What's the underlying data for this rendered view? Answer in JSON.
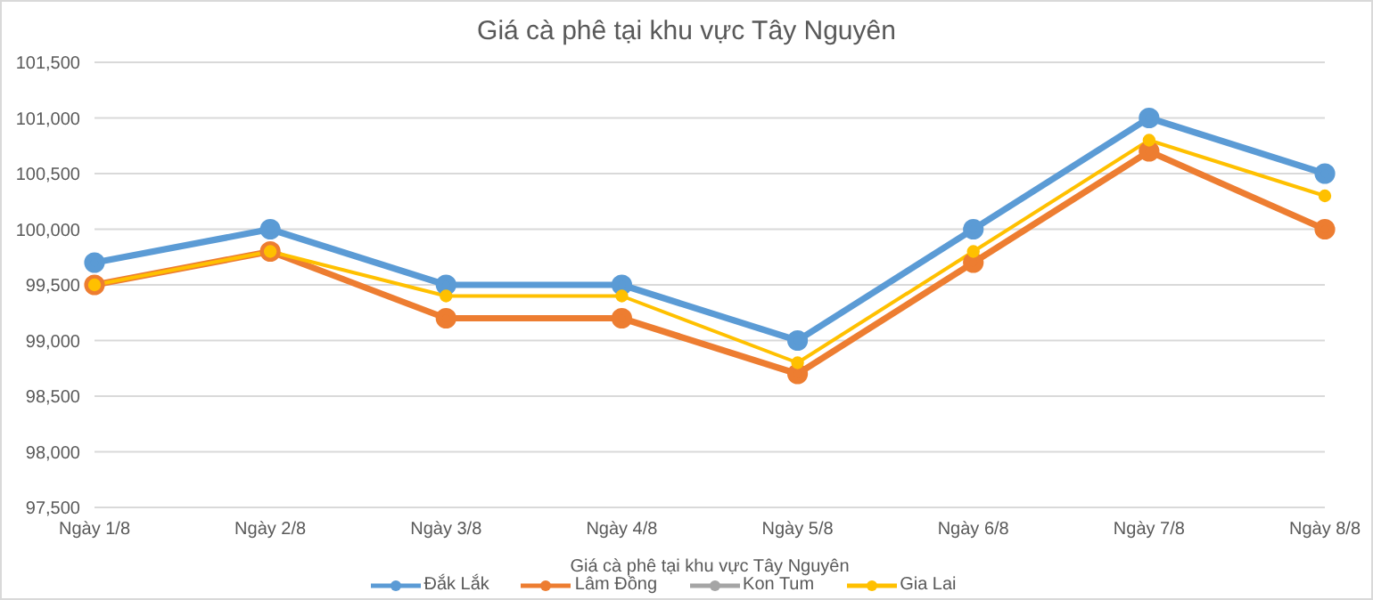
{
  "chart_data": {
    "type": "line",
    "title": "Giá cà phê tại khu vực Tây Nguyên",
    "xlabel": "Giá cà phê tại khu vực Tây Nguyên",
    "categories": [
      "Ngày 1/8",
      "Ngày 2/8",
      "Ngày 3/8",
      "Ngày 4/8",
      "Ngày 5/8",
      "Ngày 6/8",
      "Ngày 7/8",
      "Ngày 8/8"
    ],
    "series": [
      {
        "name": "Đắk Lắk",
        "color": "#5b9bd5",
        "values": [
          99700,
          100000,
          99500,
          99500,
          99000,
          100000,
          101000,
          100500
        ]
      },
      {
        "name": "Lâm Đồng",
        "color": "#ed7d31",
        "values": [
          99500,
          99800,
          99200,
          99200,
          98700,
          99700,
          100700,
          100000
        ]
      },
      {
        "name": "Kon Tum",
        "color": "#a5a5a5",
        "values": [
          null,
          null,
          null,
          null,
          null,
          null,
          null,
          null
        ]
      },
      {
        "name": "Gia Lai",
        "color": "#ffc000",
        "values": [
          99500,
          99800,
          99400,
          99400,
          98800,
          99800,
          100800,
          100300
        ]
      }
    ],
    "ylim": [
      97500,
      101500
    ],
    "yticks": [
      {
        "value": 97500,
        "label": "97,500"
      },
      {
        "value": 98000,
        "label": "98,000"
      },
      {
        "value": 98500,
        "label": "98,500"
      },
      {
        "value": 99000,
        "label": "99,000"
      },
      {
        "value": 99500,
        "label": "99,500"
      },
      {
        "value": 100000,
        "label": "100,000"
      },
      {
        "value": 100500,
        "label": "100,500"
      },
      {
        "value": 101000,
        "label": "101,000"
      },
      {
        "value": 101500,
        "label": "101,500"
      }
    ],
    "grid": "y",
    "legend": "bottom",
    "marker": "circle",
    "line_style": "solid"
  }
}
